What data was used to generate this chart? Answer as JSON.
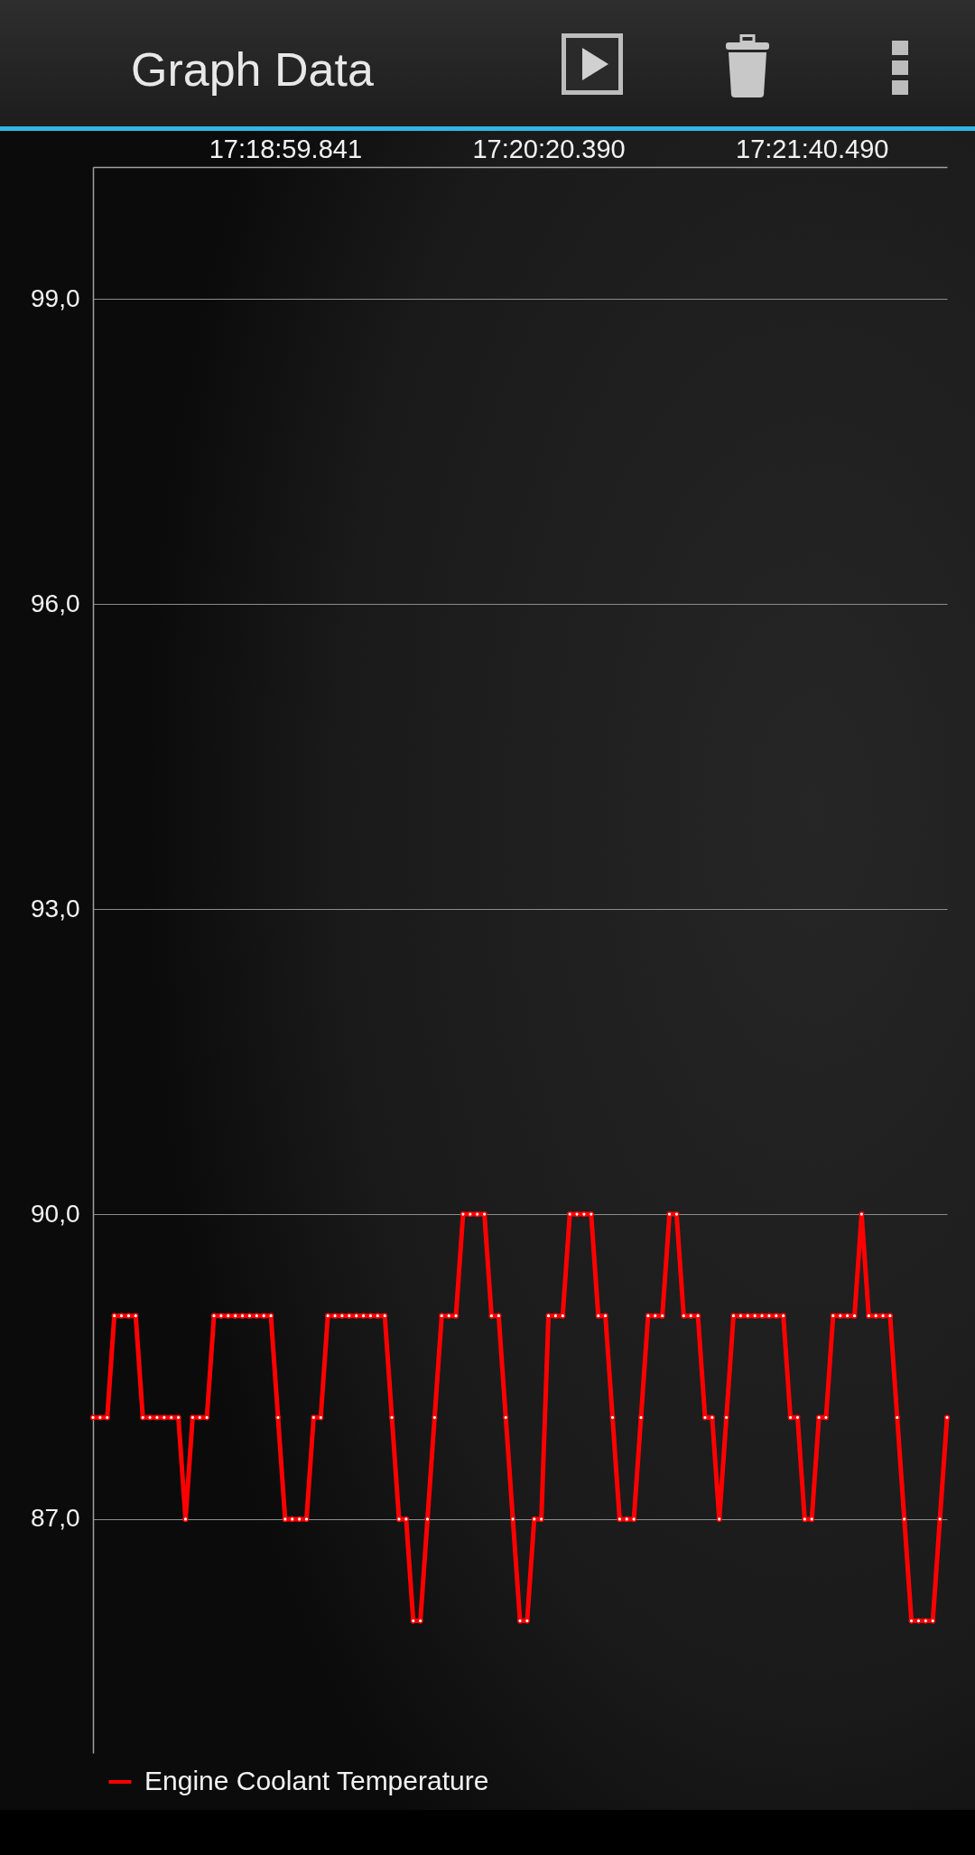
{
  "chart_data": {
    "type": "line",
    "title": "Graph Data",
    "categories": [
      null,
      null,
      null,
      null,
      null,
      null,
      null,
      null,
      null,
      null,
      null,
      null,
      null,
      null,
      null,
      null,
      null,
      null,
      null,
      null,
      null,
      null,
      null,
      null,
      null,
      null,
      null,
      "17:18:59.841",
      null,
      null,
      null,
      null,
      null,
      null,
      null,
      null,
      null,
      null,
      null,
      null,
      null,
      null,
      null,
      null,
      null,
      null,
      null,
      null,
      null,
      null,
      null,
      null,
      null,
      null,
      null,
      null,
      null,
      null,
      null,
      null,
      null,
      null,
      null,
      null,
      "17:20:20.390",
      null,
      null,
      null,
      null,
      null,
      null,
      null,
      null,
      null,
      null,
      null,
      null,
      null,
      null,
      null,
      null,
      null,
      null,
      null,
      null,
      null,
      null,
      null,
      null,
      null,
      null,
      null,
      null,
      null,
      null,
      null,
      null,
      null,
      null,
      null,
      null,
      "17:21:40.490",
      null,
      null,
      null,
      null,
      null,
      null,
      null,
      null,
      null,
      null,
      null,
      null,
      null,
      null,
      null,
      null,
      null,
      null,
      null
    ],
    "series": [
      {
        "name": "Engine Coolant Temperature",
        "color": "#ff0000",
        "values": [
          88,
          88,
          88,
          89,
          89,
          89,
          89,
          88,
          88,
          88,
          88,
          88,
          88,
          87,
          88,
          88,
          88,
          89,
          89,
          89,
          89,
          89,
          89,
          89,
          89,
          89,
          88,
          87,
          87,
          87,
          87,
          88,
          88,
          89,
          89,
          89,
          89,
          89,
          89,
          89,
          89,
          89,
          88,
          87,
          87,
          86,
          86,
          87,
          88,
          89,
          89,
          89,
          90,
          90,
          90,
          90,
          89,
          89,
          88,
          87,
          86,
          86,
          87,
          87,
          89,
          89,
          89,
          90,
          90,
          90,
          90,
          89,
          89,
          88,
          87,
          87,
          87,
          88,
          89,
          89,
          89,
          90,
          90,
          89,
          89,
          89,
          88,
          88,
          87,
          88,
          89,
          89,
          89,
          89,
          89,
          89,
          89,
          89,
          88,
          88,
          87,
          87,
          88,
          88,
          89,
          89,
          89,
          89,
          90,
          89,
          89,
          89,
          89,
          88,
          87,
          86,
          86,
          86,
          86,
          87,
          88
        ]
      }
    ],
    "ylim": [
      84.7,
      100.3
    ],
    "yticks": [
      {
        "value": 87,
        "label": "87,0"
      },
      {
        "value": 90,
        "label": "90,0"
      },
      {
        "value": 93,
        "label": "93,0"
      },
      {
        "value": 96,
        "label": "96,0"
      },
      {
        "value": 99,
        "label": "99,0"
      }
    ],
    "grid": "y",
    "legend": "bottom left",
    "marker": "circle"
  }
}
